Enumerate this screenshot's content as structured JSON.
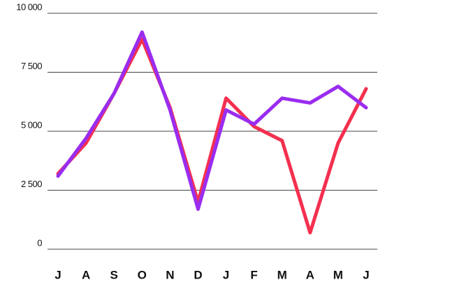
{
  "chart_data": {
    "type": "line",
    "categories": [
      "J",
      "A",
      "S",
      "O",
      "N",
      "D",
      "J",
      "F",
      "M",
      "A",
      "M",
      "J"
    ],
    "series": [
      {
        "color": "#f4304f",
        "values": [
          3200,
          4500,
          6600,
          8900,
          6000,
          2000,
          6400,
          5200,
          4600,
          700,
          4500,
          6800
        ]
      },
      {
        "color": "#9a2cf0",
        "values": [
          3100,
          4700,
          6600,
          9200,
          5900,
          1700,
          5900,
          5300,
          6400,
          6200,
          6900,
          6000
        ]
      }
    ],
    "ylim": [
      0,
      10000
    ],
    "yticks": [
      0,
      {
        "value": 2500,
        "label": "2 500"
      },
      {
        "value": 5000,
        "label": "5 000"
      },
      {
        "value": 7500,
        "label": "7 500"
      },
      {
        "value": 10000,
        "label": "10 000"
      }
    ],
    "grid": true
  }
}
